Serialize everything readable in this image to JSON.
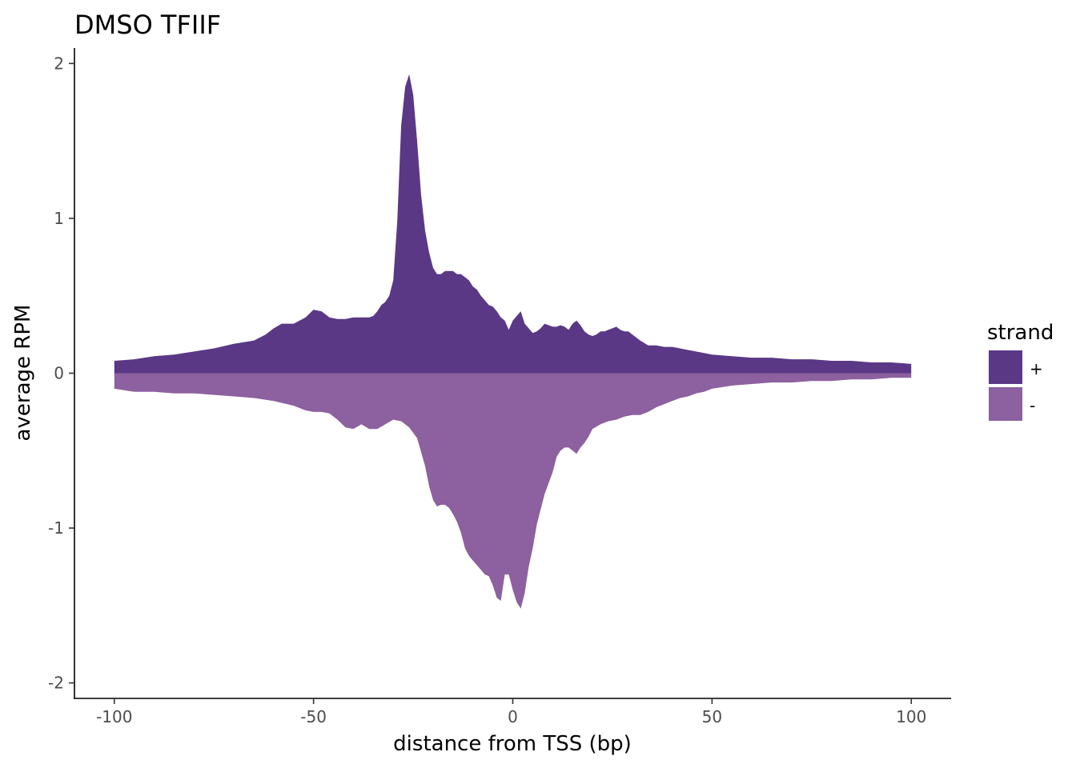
{
  "chart_data": {
    "type": "area",
    "title": "DMSO TFIIF",
    "xlabel": "distance from TSS (bp)",
    "ylabel": "average RPM",
    "xlim": [
      -110,
      110
    ],
    "ylim": [
      -2.1,
      2.1
    ],
    "x_ticks": [
      -100,
      -50,
      0,
      50,
      100
    ],
    "x_tick_labels": [
      "-100",
      "-50",
      "0",
      "50",
      "100"
    ],
    "y_ticks": [
      -2,
      -1,
      0,
      1,
      2
    ],
    "y_tick_labels": [
      "-2",
      "-1",
      "0",
      "1",
      "2"
    ],
    "grid": false,
    "legend": {
      "title": "strand",
      "position": "right"
    },
    "series": [
      {
        "name": "+",
        "color": "#5a3886",
        "x": [
          -100,
          -95,
          -90,
          -85,
          -80,
          -75,
          -70,
          -65,
          -62,
          -60,
          -58,
          -55,
          -52,
          -50,
          -48,
          -46,
          -44,
          -42,
          -40,
          -38,
          -36,
          -35,
          -34,
          -33,
          -32,
          -31,
          -30,
          -29,
          -28,
          -27,
          -26,
          -25,
          -24,
          -23,
          -22,
          -21,
          -20,
          -19,
          -18,
          -17,
          -16,
          -15,
          -14,
          -13,
          -12,
          -11,
          -10,
          -9,
          -8,
          -7,
          -6,
          -5,
          -4,
          -3,
          -2,
          -1,
          0,
          1,
          2,
          3,
          4,
          5,
          6,
          7,
          8,
          9,
          10,
          11,
          12,
          13,
          14,
          15,
          16,
          17,
          18,
          19,
          20,
          21,
          22,
          23,
          24,
          25,
          26,
          27,
          28,
          29,
          30,
          32,
          34,
          36,
          38,
          40,
          42,
          44,
          46,
          48,
          50,
          55,
          60,
          65,
          70,
          75,
          80,
          85,
          90,
          95,
          100
        ],
        "values": [
          0.08,
          0.09,
          0.11,
          0.12,
          0.14,
          0.16,
          0.19,
          0.21,
          0.25,
          0.29,
          0.32,
          0.32,
          0.36,
          0.41,
          0.4,
          0.36,
          0.35,
          0.35,
          0.36,
          0.36,
          0.36,
          0.37,
          0.4,
          0.44,
          0.46,
          0.5,
          0.6,
          0.98,
          1.6,
          1.85,
          1.93,
          1.8,
          1.5,
          1.15,
          0.92,
          0.78,
          0.68,
          0.64,
          0.64,
          0.66,
          0.66,
          0.66,
          0.64,
          0.64,
          0.62,
          0.6,
          0.56,
          0.54,
          0.5,
          0.47,
          0.44,
          0.43,
          0.4,
          0.36,
          0.34,
          0.28,
          0.34,
          0.37,
          0.4,
          0.32,
          0.29,
          0.26,
          0.27,
          0.29,
          0.32,
          0.31,
          0.3,
          0.3,
          0.31,
          0.3,
          0.28,
          0.32,
          0.34,
          0.31,
          0.27,
          0.25,
          0.24,
          0.25,
          0.27,
          0.27,
          0.28,
          0.29,
          0.3,
          0.28,
          0.27,
          0.27,
          0.25,
          0.21,
          0.18,
          0.18,
          0.17,
          0.17,
          0.16,
          0.15,
          0.14,
          0.13,
          0.12,
          0.11,
          0.1,
          0.1,
          0.09,
          0.09,
          0.08,
          0.08,
          0.07,
          0.07,
          0.06
        ]
      },
      {
        "name": "-",
        "color": "#8d60a0",
        "x": [
          -100,
          -95,
          -90,
          -85,
          -80,
          -75,
          -70,
          -65,
          -60,
          -55,
          -52,
          -50,
          -48,
          -46,
          -44,
          -42,
          -40,
          -38,
          -36,
          -34,
          -32,
          -30,
          -28,
          -26,
          -24,
          -22,
          -21,
          -20,
          -19,
          -18,
          -17,
          -16,
          -15,
          -14,
          -13,
          -12,
          -11,
          -10,
          -9,
          -8,
          -7,
          -6,
          -5,
          -4,
          -3,
          -2,
          -1,
          0,
          1,
          2,
          3,
          4,
          5,
          6,
          7,
          8,
          9,
          10,
          11,
          12,
          13,
          14,
          15,
          16,
          17,
          18,
          19,
          20,
          22,
          24,
          26,
          28,
          30,
          32,
          34,
          36,
          38,
          40,
          42,
          44,
          46,
          48,
          50,
          55,
          60,
          65,
          70,
          75,
          80,
          85,
          90,
          95,
          100
        ],
        "values": [
          -0.1,
          -0.12,
          -0.12,
          -0.13,
          -0.13,
          -0.14,
          -0.15,
          -0.16,
          -0.18,
          -0.21,
          -0.24,
          -0.25,
          -0.25,
          -0.26,
          -0.3,
          -0.35,
          -0.36,
          -0.33,
          -0.36,
          -0.36,
          -0.33,
          -0.3,
          -0.31,
          -0.35,
          -0.42,
          -0.6,
          -0.73,
          -0.82,
          -0.86,
          -0.85,
          -0.85,
          -0.87,
          -0.91,
          -0.96,
          -1.03,
          -1.13,
          -1.18,
          -1.21,
          -1.24,
          -1.27,
          -1.3,
          -1.31,
          -1.37,
          -1.45,
          -1.47,
          -1.3,
          -1.3,
          -1.4,
          -1.48,
          -1.52,
          -1.42,
          -1.25,
          -1.13,
          -0.98,
          -0.88,
          -0.78,
          -0.71,
          -0.64,
          -0.54,
          -0.5,
          -0.48,
          -0.48,
          -0.5,
          -0.52,
          -0.48,
          -0.45,
          -0.41,
          -0.36,
          -0.33,
          -0.31,
          -0.3,
          -0.28,
          -0.27,
          -0.27,
          -0.25,
          -0.22,
          -0.2,
          -0.18,
          -0.16,
          -0.15,
          -0.13,
          -0.12,
          -0.1,
          -0.08,
          -0.07,
          -0.06,
          -0.06,
          -0.05,
          -0.05,
          -0.04,
          -0.04,
          -0.03,
          -0.03
        ]
      }
    ]
  }
}
